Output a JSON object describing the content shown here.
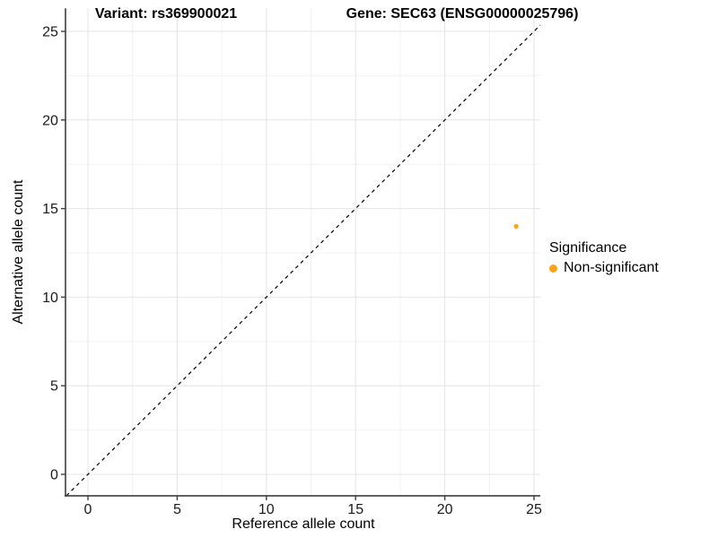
{
  "titles": {
    "variant": "Variant: rs369900021",
    "gene": "Gene: SEC63 (ENSG00000025796)"
  },
  "chart_data": {
    "type": "scatter",
    "title_left": "Variant: rs369900021",
    "title_right": "Gene: SEC63 (ENSG00000025796)",
    "xlabel": "Reference allele count",
    "ylabel": "Alternative allele count",
    "xlim": [
      -1.26,
      25.35
    ],
    "ylim": [
      -1.21,
      26.3
    ],
    "xticks": [
      0,
      5,
      10,
      15,
      20,
      25
    ],
    "yticks": [
      0,
      5,
      10,
      15,
      20,
      25
    ],
    "grid": "major-and-minor",
    "points": [
      {
        "x": 24,
        "y": 14,
        "series": "Non-significant"
      }
    ],
    "abline": {
      "slope": 1,
      "intercept": 0,
      "dashed": true
    },
    "legend": {
      "position": "right",
      "title": "Significance",
      "items": [
        {
          "label": "Non-significant",
          "color": "#FFA319"
        }
      ]
    }
  },
  "colors": {
    "point": "#FFA319",
    "grid_major": "#e4e4e4",
    "grid_minor": "#f2f2f2",
    "axis_line": "#3f3f3f",
    "tick_text": "#1a1a1a",
    "abline": "#000000",
    "background": "#ffffff"
  }
}
